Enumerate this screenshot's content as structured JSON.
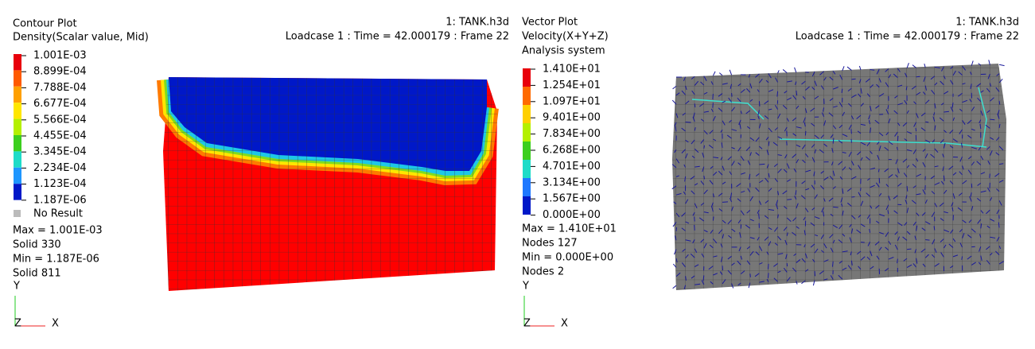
{
  "left_panel": {
    "title": "Contour Plot",
    "subtitle": "Density(Scalar value, Mid)",
    "file": "1: TANK.h3d",
    "loadcase": "Loadcase 1 : Time = 42.000179 : Frame 22",
    "legend": [
      "1.001E-03",
      "8.899E-04",
      "7.788E-04",
      "6.677E-04",
      "5.566E-04",
      "4.455E-04",
      "3.345E-04",
      "2.234E-04",
      "1.123E-04",
      "1.187E-06"
    ],
    "no_result": "No Result",
    "stats": [
      "Max = 1.001E-03",
      "Solid 330",
      "Min = 1.187E-06",
      "Solid 811"
    ],
    "axes": [
      "Y",
      "Z",
      "X"
    ]
  },
  "right_panel": {
    "title": "Vector Plot",
    "subtitle": "Velocity(X+Y+Z)",
    "system": "Analysis system",
    "file": "1: TANK.h3d",
    "loadcase": "Loadcase 1 : Time = 42.000179 : Frame 22",
    "legend": [
      "1.410E+01",
      "1.254E+01",
      "1.097E+01",
      "9.401E+00",
      "7.834E+00",
      "6.268E+00",
      "4.701E+00",
      "3.134E+00",
      "1.567E+00",
      "0.000E+00"
    ],
    "stats": [
      "Max = 1.410E+01",
      "Nodes 127",
      "Min = 0.000E+00",
      "Nodes 2"
    ],
    "axes": [
      "Y",
      "Z",
      "X"
    ]
  }
}
